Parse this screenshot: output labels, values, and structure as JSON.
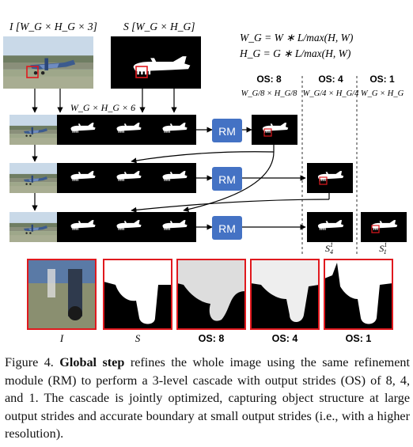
{
  "inputs": {
    "image_label": "I [W_G × H_G × 3]",
    "mask_label": "S [W_G × H_G]"
  },
  "formula": {
    "line1": "W_G = W ∗ L/max(H, W)",
    "line2": "H_G = G ∗ L/max(H, W)"
  },
  "stack_label": "W_G × H_G × 6",
  "module_label": "RM",
  "strides": [
    {
      "os": "OS: 8",
      "dims": "W_G/8 × H_G/8"
    },
    {
      "os": "OS: 4",
      "dims": "W_G/4 × H_G/4"
    },
    {
      "os": "OS: 1",
      "dims": "W_G × H_G"
    }
  ],
  "output_labels": [
    "S^1_4",
    "S^1_1"
  ],
  "zoom_labels": [
    "I",
    "S",
    "OS: 8",
    "OS: 4",
    "OS: 1"
  ],
  "caption": {
    "prefix": "Figure 4.",
    "title": "Global step",
    "body": "refines the whole image using the same refinement module (RM) to perform a 3-level cascade with output strides (OS) of 8, 4, and 1. The cascade is jointly optimized, capturing object structure at large output strides and accurate boundary at small output strides (i.e., with a higher resolution)."
  },
  "colors": {
    "rm_box": "#4472c4",
    "highlight": "#e0191e",
    "black": "#000000"
  }
}
